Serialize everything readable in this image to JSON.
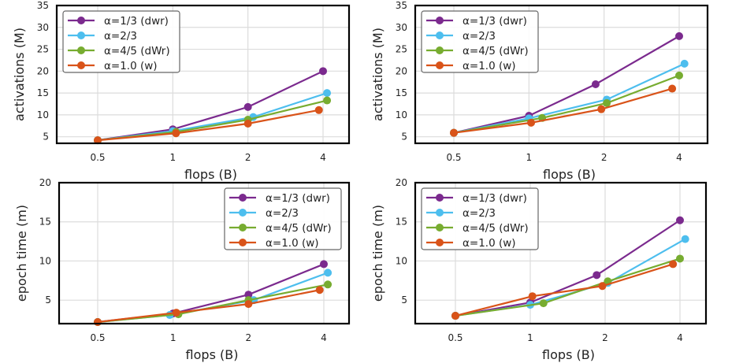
{
  "chart_data": [
    {
      "type": "line",
      "panel": "top-left",
      "title": "",
      "xlabel": "flops (B)",
      "ylabel": "activations (M)",
      "x_categories": [
        "0.5",
        "1",
        "2",
        "4"
      ],
      "ylim": [
        3.5,
        35
      ],
      "yticks": [
        5,
        10,
        15,
        20,
        25,
        30,
        35
      ],
      "grid": true,
      "legend_position": "top-left",
      "series": [
        {
          "name": "α=1/3 (dwr)",
          "color": "#7b2a8e",
          "x": [
            0.5,
            1,
            2,
            4
          ],
          "y": [
            4.2,
            6.7,
            11.8,
            20.0
          ]
        },
        {
          "name": "α=2/3",
          "color": "#4dbeee",
          "x": [
            0.5,
            1,
            2.1,
            4.15
          ],
          "y": [
            4.2,
            6.3,
            9.5,
            15.0
          ]
        },
        {
          "name": "α=4/5 (dWr)",
          "color": "#77ac30",
          "x": [
            0.5,
            1.03,
            2,
            4.15
          ],
          "y": [
            4.2,
            6.1,
            8.9,
            13.3
          ]
        },
        {
          "name": "α=1.0 (w)",
          "color": "#d95319",
          "x": [
            0.5,
            1.03,
            2,
            3.85
          ],
          "y": [
            4.2,
            5.8,
            8.0,
            11.1
          ]
        }
      ]
    },
    {
      "type": "line",
      "panel": "top-right",
      "title": "",
      "xlabel": "flops (B)",
      "ylabel": "activations (M)",
      "x_categories": [
        "0.5",
        "1",
        "2",
        "4"
      ],
      "ylim": [
        3.5,
        35
      ],
      "yticks": [
        5,
        10,
        15,
        20,
        25,
        30,
        35
      ],
      "grid": true,
      "legend_position": "top-left",
      "series": [
        {
          "name": "α=1/3 (dwr)",
          "color": "#7b2a8e",
          "x": [
            0.5,
            1,
            1.85,
            4
          ],
          "y": [
            5.9,
            9.8,
            17.0,
            28.0
          ]
        },
        {
          "name": "α=2/3",
          "color": "#4dbeee",
          "x": [
            0.5,
            1,
            2.05,
            4.2
          ],
          "y": [
            5.9,
            9.2,
            13.5,
            21.7
          ]
        },
        {
          "name": "α=4/5 (dWr)",
          "color": "#77ac30",
          "x": [
            0.5,
            1.13,
            2.05,
            4
          ],
          "y": [
            5.9,
            9.3,
            12.7,
            19.0
          ]
        },
        {
          "name": "α=1.0 (w)",
          "color": "#d95319",
          "x": [
            0.5,
            1.02,
            1.95,
            3.75
          ],
          "y": [
            5.9,
            8.2,
            11.3,
            16.0
          ]
        }
      ]
    },
    {
      "type": "line",
      "panel": "bottom-left",
      "title": "",
      "xlabel": "flops (B)",
      "ylabel": "epoch time (m)",
      "x_categories": [
        "0.5",
        "1",
        "2",
        "4"
      ],
      "ylim": [
        2,
        20
      ],
      "yticks": [
        5,
        10,
        15,
        20
      ],
      "grid": true,
      "legend_position": "top-right",
      "series": [
        {
          "name": "α=1/3 (dwr)",
          "color": "#7b2a8e",
          "x": [
            0.5,
            1,
            2,
            4
          ],
          "y": [
            2.2,
            3.3,
            5.7,
            9.6
          ]
        },
        {
          "name": "α=2/3",
          "color": "#4dbeee",
          "x": [
            0.5,
            0.97,
            2.1,
            4.15
          ],
          "y": [
            2.2,
            3.1,
            5.0,
            8.5
          ]
        },
        {
          "name": "α=4/5 (dWr)",
          "color": "#77ac30",
          "x": [
            0.5,
            1.05,
            2,
            4.15
          ],
          "y": [
            2.2,
            3.2,
            5.0,
            7.0
          ]
        },
        {
          "name": "α=1.0 (w)",
          "color": "#d95319",
          "x": [
            0.5,
            1.03,
            2,
            3.85
          ],
          "y": [
            2.2,
            3.4,
            4.5,
            6.3
          ]
        }
      ]
    },
    {
      "type": "line",
      "panel": "bottom-right",
      "title": "",
      "xlabel": "flops (B)",
      "ylabel": "epoch time (m)",
      "x_categories": [
        "0.5",
        "1",
        "2",
        "4"
      ],
      "ylim": [
        2,
        20
      ],
      "yticks": [
        5,
        10,
        15,
        20
      ],
      "grid": true,
      "legend_position": "top-left",
      "series": [
        {
          "name": "α=1/3 (dwr)",
          "color": "#7b2a8e",
          "x": [
            0.5,
            1,
            1.85,
            4
          ],
          "y": [
            3.0,
            4.7,
            8.2,
            15.2
          ]
        },
        {
          "name": "α=2/3",
          "color": "#4dbeee",
          "x": [
            0.5,
            1,
            2.05,
            4.2
          ],
          "y": [
            3.0,
            4.4,
            7.2,
            12.8
          ]
        },
        {
          "name": "α=4/5 (dWr)",
          "color": "#77ac30",
          "x": [
            0.5,
            1.13,
            2.05,
            4
          ],
          "y": [
            3.0,
            4.6,
            7.4,
            10.3
          ]
        },
        {
          "name": "α=1.0 (w)",
          "color": "#d95319",
          "x": [
            0.5,
            1.02,
            1.95,
            3.75
          ],
          "y": [
            3.0,
            5.5,
            6.8,
            9.6
          ]
        }
      ]
    }
  ]
}
